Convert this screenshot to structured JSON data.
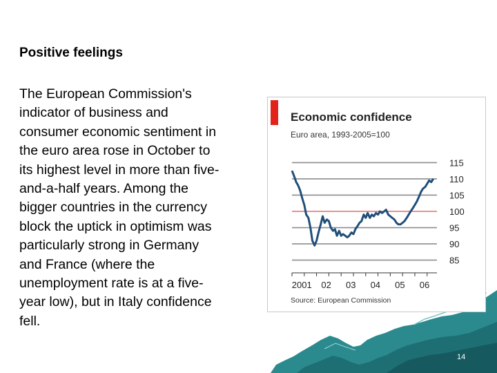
{
  "slide": {
    "heading": "Positive feelings",
    "body": "The European Commission's\nindicator of business and\nconsumer economic sentiment in\nthe euro area rose in October to\nits highest level in more than five-\nand-a-half years. Among the\nbigger countries in the currency\nblock the uptick in optimism was\nparticularly strong in Germany\nand France (where the\nunemployment rate is at a five-\nyear low), but in Italy confidence\nfell.",
    "page_number": "14"
  },
  "chart_data": {
    "type": "line",
    "title": "Economic confidence",
    "subtitle": "Euro area, 1993-2005=100",
    "source": "Source: European Commission",
    "x_tick_labels": [
      "2001",
      "02",
      "03",
      "04",
      "05",
      "06"
    ],
    "y_ticks": [
      85,
      90,
      95,
      100,
      105,
      110,
      115
    ],
    "ylim": [
      83,
      117
    ],
    "xlim": [
      2001.0,
      2006.9
    ],
    "reference_line": 100,
    "grid": true,
    "colors": {
      "line": "#1f4e79",
      "grid": "#8c8c8c",
      "reference": "#cc2222",
      "accent": "#e2231a"
    },
    "series": [
      {
        "x": [
          2001.0,
          2001.08,
          2001.17,
          2001.25,
          2001.33,
          2001.42,
          2001.5,
          2001.58,
          2001.67,
          2001.75,
          2001.83,
          2001.92,
          2002.0,
          2002.08,
          2002.17,
          2002.25,
          2002.33,
          2002.42,
          2002.5,
          2002.58,
          2002.67,
          2002.75,
          2002.83,
          2002.92,
          2003.0,
          2003.08,
          2003.17,
          2003.25,
          2003.33,
          2003.42,
          2003.5,
          2003.58,
          2003.67,
          2003.75,
          2003.83,
          2003.92,
          2004.0,
          2004.08,
          2004.17,
          2004.25,
          2004.33,
          2004.42,
          2004.5,
          2004.58,
          2004.67,
          2004.75,
          2004.83,
          2004.92,
          2005.0,
          2005.08,
          2005.17,
          2005.25,
          2005.33,
          2005.42,
          2005.5,
          2005.58,
          2005.67,
          2005.75,
          2005.83,
          2005.92,
          2006.0,
          2006.08,
          2006.17,
          2006.25,
          2006.33,
          2006.42,
          2006.5,
          2006.58,
          2006.67,
          2006.75
        ],
        "y": [
          112.5,
          111,
          109,
          108,
          106.5,
          104,
          102,
          99,
          98,
          95,
          91,
          89.5,
          91,
          93.5,
          96,
          98.5,
          96.5,
          97.5,
          97,
          95,
          94,
          94.5,
          92.5,
          94,
          92.5,
          93,
          92.5,
          92,
          92.5,
          93.5,
          93,
          94.5,
          95.5,
          96.5,
          97,
          99,
          98,
          99.5,
          98,
          99,
          98.5,
          99.5,
          99,
          100,
          99.5,
          100,
          100.5,
          99,
          98.5,
          98,
          97.5,
          96.5,
          96,
          96,
          96.5,
          97,
          98,
          99,
          100,
          101,
          102,
          103,
          104.5,
          106,
          107,
          107.5,
          108.5,
          109.5,
          109,
          110
        ]
      }
    ]
  }
}
